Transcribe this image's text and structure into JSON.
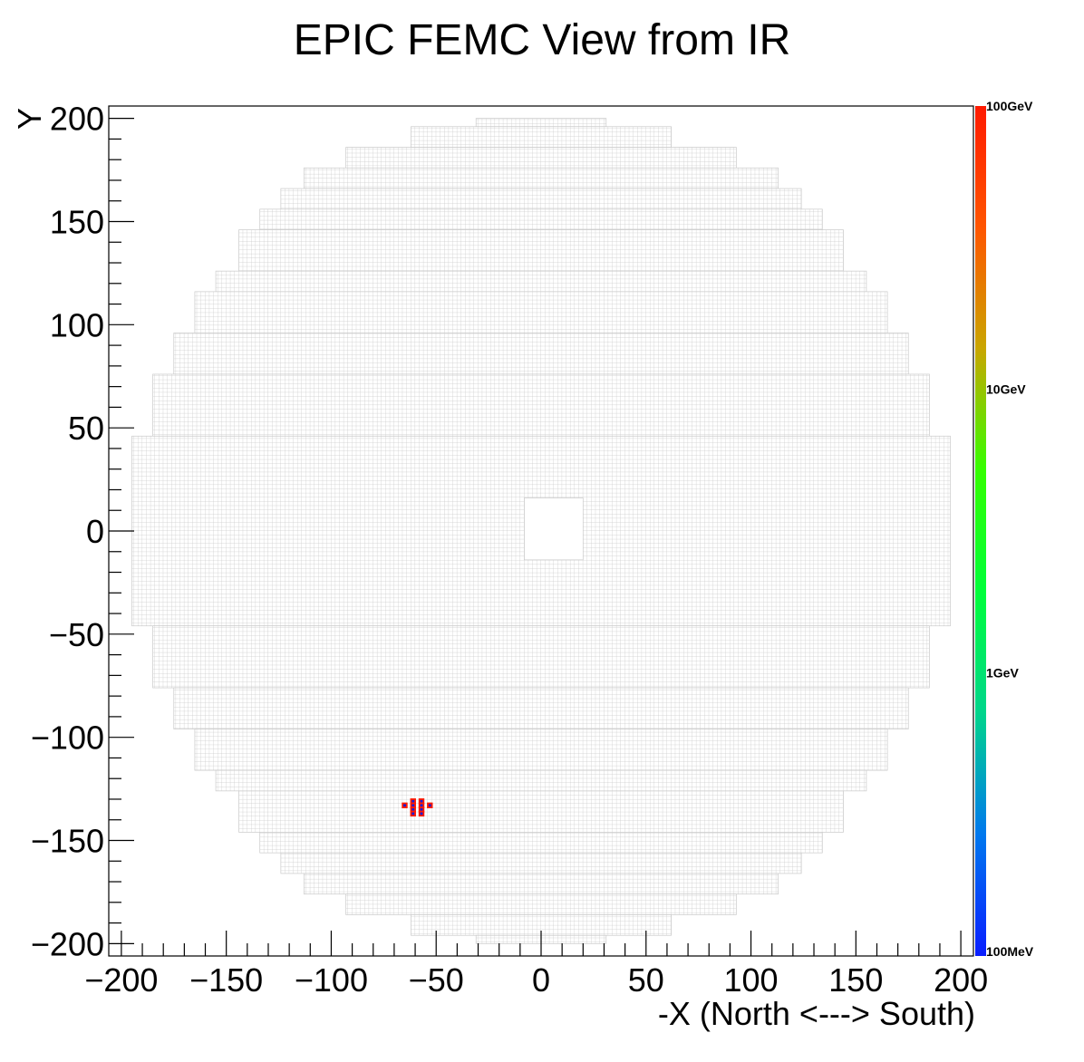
{
  "chart_data": {
    "type": "heatmap",
    "title": "EPIC FEMC View from IR",
    "xlabel": "-X (North <---> South)",
    "ylabel": "Y",
    "xlim": [
      -206,
      206
    ],
    "ylim": [
      -206,
      206
    ],
    "x_ticks": [
      {
        "value": -200,
        "label": "−200"
      },
      {
        "value": -150,
        "label": "−150"
      },
      {
        "value": -100,
        "label": "−100"
      },
      {
        "value": -50,
        "label": "−50"
      },
      {
        "value": 0,
        "label": "0"
      },
      {
        "value": 50,
        "label": "50"
      },
      {
        "value": 100,
        "label": "100"
      },
      {
        "value": 150,
        "label": "150"
      },
      {
        "value": 200,
        "label": "200"
      }
    ],
    "y_ticks": [
      {
        "value": -200,
        "label": "−200"
      },
      {
        "value": -150,
        "label": "−150"
      },
      {
        "value": -100,
        "label": "−100"
      },
      {
        "value": -50,
        "label": "−50"
      },
      {
        "value": 0,
        "label": "0"
      },
      {
        "value": 50,
        "label": "50"
      },
      {
        "value": 100,
        "label": "100"
      },
      {
        "value": 150,
        "label": "150"
      },
      {
        "value": 200,
        "label": "200"
      }
    ],
    "colorbar": {
      "scale": "log",
      "range_gev": [
        0.1,
        100
      ],
      "labels": [
        {
          "value": 100,
          "label": "100GeV"
        },
        {
          "value": 10,
          "label": "10GeV"
        },
        {
          "value": 1,
          "label": "1GeV"
        },
        {
          "value": 0.1,
          "label": "100MeV"
        }
      ],
      "colors": [
        "#0a1eff",
        "#0078ee",
        "#00d58c",
        "#00ff3a",
        "#34ff00",
        "#c9a600",
        "#ff5500",
        "#ff1a00"
      ]
    },
    "detector": {
      "cell_size": 2,
      "beam_hole": {
        "x": [
          -8,
          20
        ],
        "y": [
          -14,
          16
        ]
      },
      "rows": [
        {
          "y": [
            196,
            200
          ],
          "x": [
            -31,
            31
          ]
        },
        {
          "y": [
            186,
            196
          ],
          "x": [
            -62,
            62
          ]
        },
        {
          "y": [
            176,
            186
          ],
          "x": [
            -93,
            93
          ]
        },
        {
          "y": [
            166,
            176
          ],
          "x": [
            -113,
            113
          ]
        },
        {
          "y": [
            156,
            166
          ],
          "x": [
            -124,
            124
          ]
        },
        {
          "y": [
            146,
            156
          ],
          "x": [
            -134,
            134
          ]
        },
        {
          "y": [
            126,
            146
          ],
          "x": [
            -144,
            144
          ]
        },
        {
          "y": [
            116,
            126
          ],
          "x": [
            -155,
            155
          ]
        },
        {
          "y": [
            96,
            116
          ],
          "x": [
            -165,
            165
          ]
        },
        {
          "y": [
            76,
            96
          ],
          "x": [
            -175,
            175
          ]
        },
        {
          "y": [
            46,
            76
          ],
          "x": [
            -185,
            185
          ]
        },
        {
          "y": [
            -46,
            46
          ],
          "x": [
            -195,
            195
          ]
        },
        {
          "y": [
            -76,
            -46
          ],
          "x": [
            -185,
            185
          ]
        },
        {
          "y": [
            -96,
            -76
          ],
          "x": [
            -175,
            175
          ]
        },
        {
          "y": [
            -116,
            -96
          ],
          "x": [
            -165,
            165
          ]
        },
        {
          "y": [
            -126,
            -116
          ],
          "x": [
            -155,
            155
          ]
        },
        {
          "y": [
            -146,
            -126
          ],
          "x": [
            -144,
            144
          ]
        },
        {
          "y": [
            -156,
            -146
          ],
          "x": [
            -134,
            134
          ]
        },
        {
          "y": [
            -166,
            -156
          ],
          "x": [
            -124,
            124
          ]
        },
        {
          "y": [
            -176,
            -166
          ],
          "x": [
            -113,
            113
          ]
        },
        {
          "y": [
            -186,
            -176
          ],
          "x": [
            -93,
            93
          ]
        },
        {
          "y": [
            -196,
            -186
          ],
          "x": [
            -62,
            62
          ]
        },
        {
          "y": [
            -200,
            -196
          ],
          "x": [
            -31,
            31
          ]
        }
      ]
    },
    "hits": [
      {
        "x": -61,
        "y": -131,
        "energy_gev": 100
      },
      {
        "x": -57,
        "y": -131,
        "energy_gev": 100
      },
      {
        "x": -65,
        "y": -133,
        "energy_gev": 100
      },
      {
        "x": -61,
        "y": -133,
        "energy_gev": 100
      },
      {
        "x": -57,
        "y": -133,
        "energy_gev": 100
      },
      {
        "x": -53,
        "y": -133,
        "energy_gev": 100
      },
      {
        "x": -61,
        "y": -135,
        "energy_gev": 100
      },
      {
        "x": -57,
        "y": -135,
        "energy_gev": 100
      },
      {
        "x": -61,
        "y": -137,
        "energy_gev": 100
      },
      {
        "x": -57,
        "y": -137,
        "energy_gev": 100
      }
    ]
  }
}
